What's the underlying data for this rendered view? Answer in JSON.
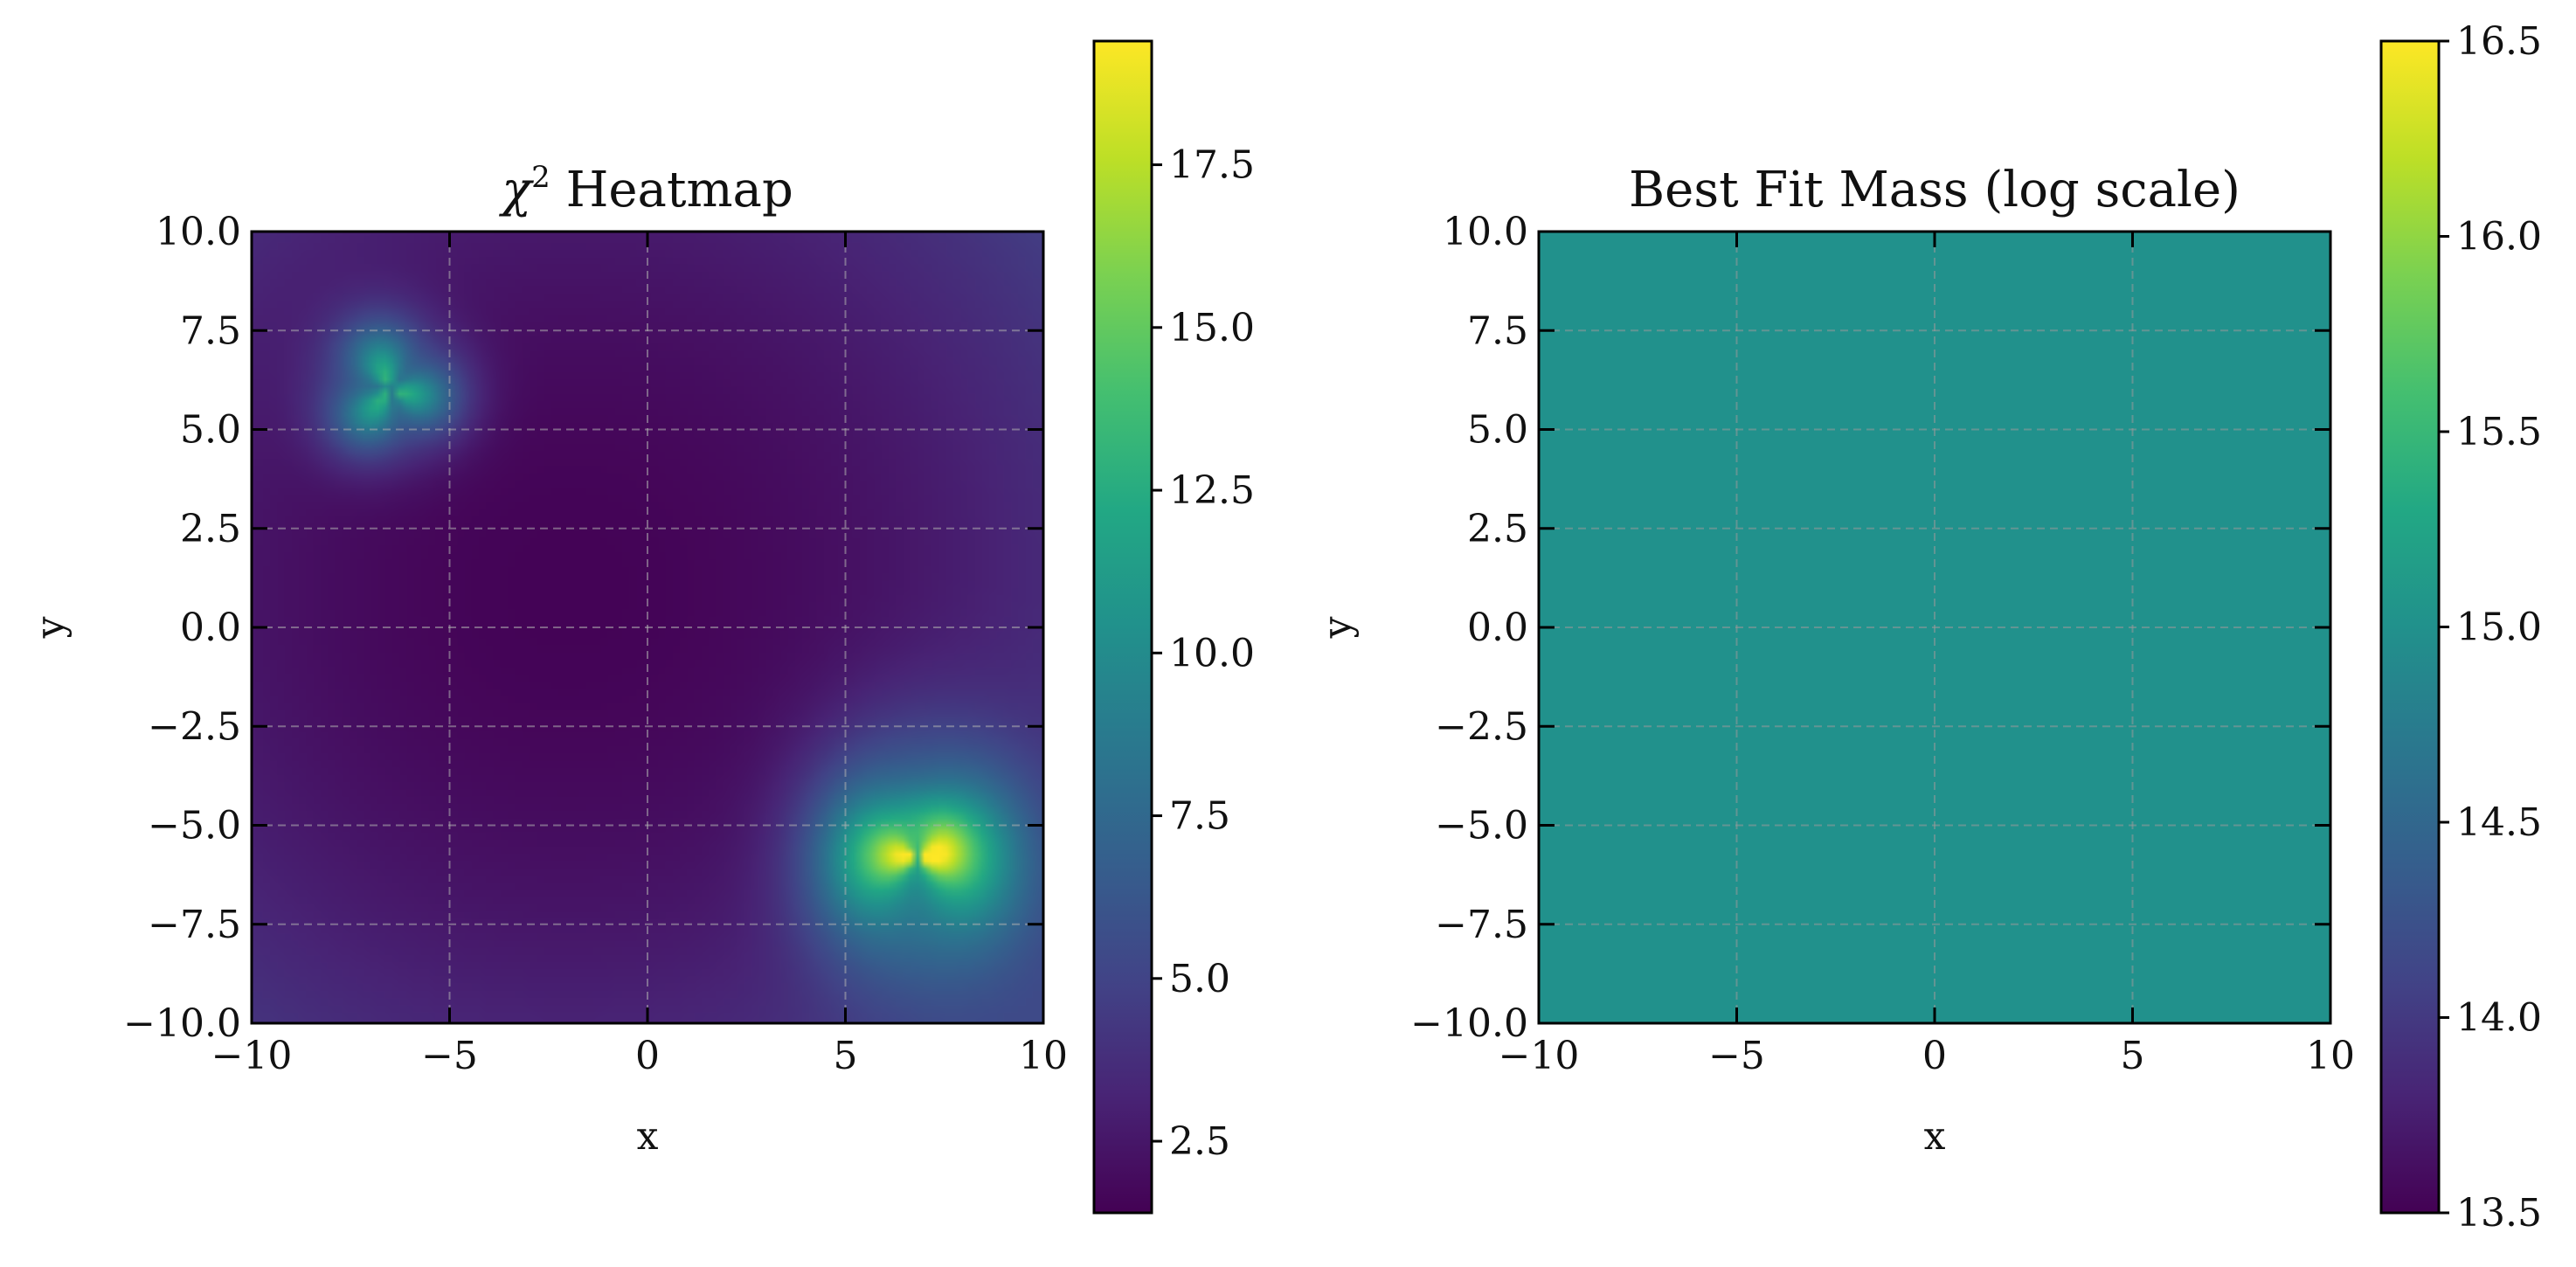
{
  "chart_data": [
    {
      "type": "heatmap",
      "title_prefix": "χ",
      "title_superscript": "2",
      "title_suffix": " Heatmap",
      "xlabel": "x",
      "ylabel": "y",
      "xlim": [
        -10,
        10
      ],
      "ylim": [
        -10,
        10
      ],
      "xticks": [
        "−10",
        "−5",
        "0",
        "5",
        "10"
      ],
      "yticks": [
        "10.0",
        "7.5",
        "5.0",
        "2.5",
        "0.0",
        "−2.5",
        "−5.0",
        "−7.5",
        "−10.0"
      ],
      "grid": true,
      "colormap": "viridis",
      "colorbar": {
        "min": 1.4,
        "max": 19.4,
        "ticks": [
          "2.5",
          "5.0",
          "7.5",
          "10.0",
          "12.5",
          "15.0",
          "17.5"
        ]
      },
      "features": [
        {
          "name": "minimum",
          "x": -2,
          "y": 1,
          "value": 1.5
        },
        {
          "name": "peak",
          "x": -6.5,
          "y": 6,
          "value": 14.2
        },
        {
          "name": "peak",
          "x": 6.8,
          "y": -5.8,
          "value": 19
        }
      ]
    },
    {
      "type": "heatmap",
      "title": "Best Fit Mass (log scale)",
      "xlabel": "x",
      "ylabel": "y",
      "xlim": [
        -10,
        10
      ],
      "ylim": [
        -10,
        10
      ],
      "xticks": [
        "−10",
        "−5",
        "0",
        "5",
        "10"
      ],
      "yticks": [
        "10.0",
        "7.5",
        "5.0",
        "2.5",
        "0.0",
        "−2.5",
        "−5.0",
        "−7.5",
        "−10.0"
      ],
      "grid": true,
      "colormap": "viridis",
      "colorbar": {
        "min": 13.5,
        "max": 16.5,
        "ticks": [
          "13.5",
          "14.0",
          "14.5",
          "15.0",
          "15.5",
          "16.0",
          "16.5"
        ]
      },
      "uniform_value": 15.0,
      "fill_color": "#21918c"
    }
  ]
}
